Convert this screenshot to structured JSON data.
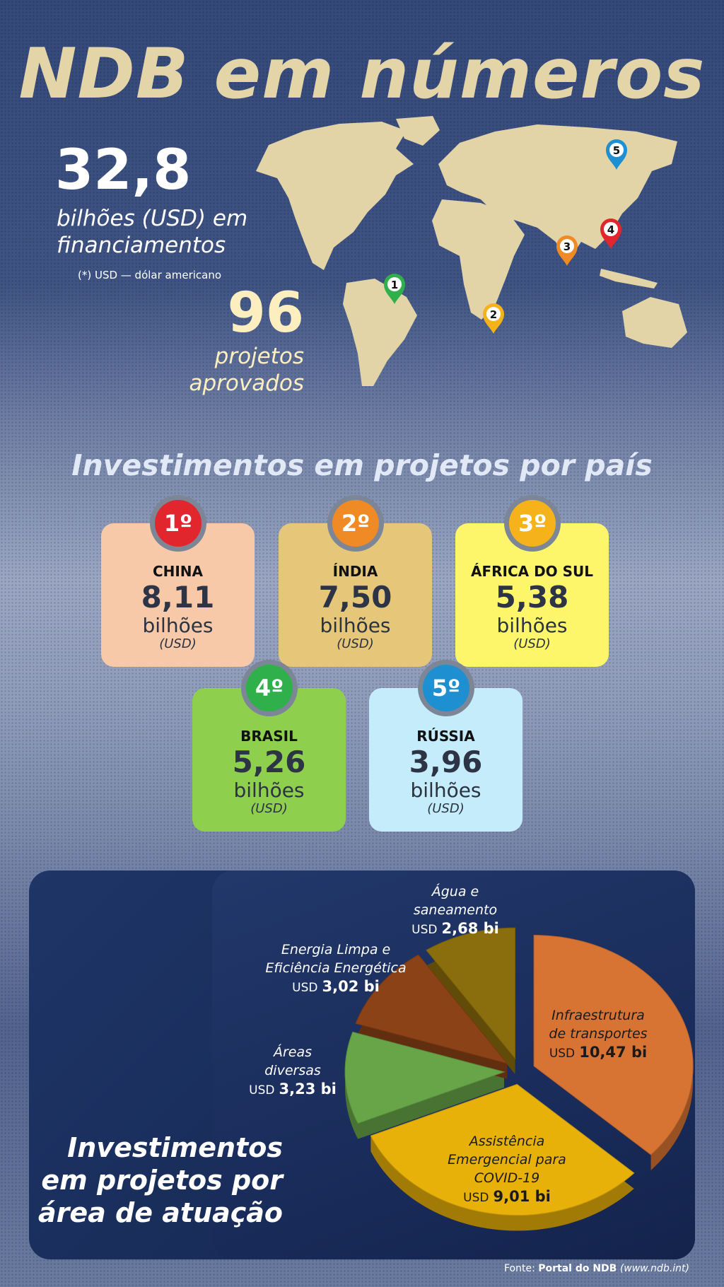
{
  "title": "NDB em números",
  "stats": {
    "financing_value": "32,8",
    "financing_line1": "bilhões (USD) em",
    "financing_line2": "financiamentos",
    "footnote": "(*) USD — dólar americano",
    "projects_value": "96",
    "projects_line1": "projetos",
    "projects_line2": "aprovados"
  },
  "map": {
    "land_color": "#e2d4a6",
    "pins": [
      {
        "n": "1",
        "color": "#2fb04a"
      },
      {
        "n": "2",
        "color": "#f5b21b"
      },
      {
        "n": "3",
        "color": "#f08a24"
      },
      {
        "n": "4",
        "color": "#e1262d"
      },
      {
        "n": "5",
        "color": "#1e8fd0"
      }
    ]
  },
  "countries_heading": "Investimentos em projetos por país",
  "countries": [
    {
      "rank": "1º",
      "name": "CHINA",
      "value": "8,11",
      "unit": "bilhões",
      "currency": "(USD)",
      "color": "#f7c9a8",
      "badge": "#e1262d"
    },
    {
      "rank": "2º",
      "name": "ÍNDIA",
      "value": "7,50",
      "unit": "bilhões",
      "currency": "(USD)",
      "color": "#e6c77a",
      "badge": "#f08a24"
    },
    {
      "rank": "3º",
      "name": "ÁFRICA DO SUL",
      "value": "5,38",
      "unit": "bilhões",
      "currency": "(USD)",
      "color": "#fdf66a",
      "badge": "#f5b21b"
    },
    {
      "rank": "4º",
      "name": "BRASIL",
      "value": "5,26",
      "unit": "bilhões",
      "currency": "(USD)",
      "color": "#8fcf4e",
      "badge": "#2fb04a"
    },
    {
      "rank": "5º",
      "name": "RÚSSIA",
      "value": "3,96",
      "unit": "bilhões",
      "currency": "(USD)",
      "color": "#c5ecfb",
      "badge": "#1e8fd0"
    }
  ],
  "chart_data": {
    "type": "pie",
    "title": "Investimentos em projetos por área de atuação",
    "unit": "USD bi",
    "slices": [
      {
        "label": "Infraestrutura de transportes",
        "value": 10.47,
        "text": "10,47 bi",
        "color": "#d87433"
      },
      {
        "label": "Assistência Emergencial para COVID-19",
        "value": 9.01,
        "text": "9,01 bi",
        "color": "#e8b10a"
      },
      {
        "label": "Áreas diversas",
        "value": 3.23,
        "text": "3,23 bi",
        "color": "#68a548"
      },
      {
        "label": "Energia Limpa e Eficiência Energética",
        "value": 3.02,
        "text": "3,02 bi",
        "color": "#8b4216"
      },
      {
        "label": "Água e saneamento",
        "value": 2.68,
        "text": "2,68 bi",
        "color": "#8a6d0c"
      }
    ],
    "currency_prefix": "USD"
  },
  "chart_title_lines": [
    "Investimentos",
    "em projetos por",
    "área de atuação"
  ],
  "source": {
    "prefix": "Fonte:",
    "name": "Portal do NDB",
    "url": "(www.ndb.int)"
  }
}
